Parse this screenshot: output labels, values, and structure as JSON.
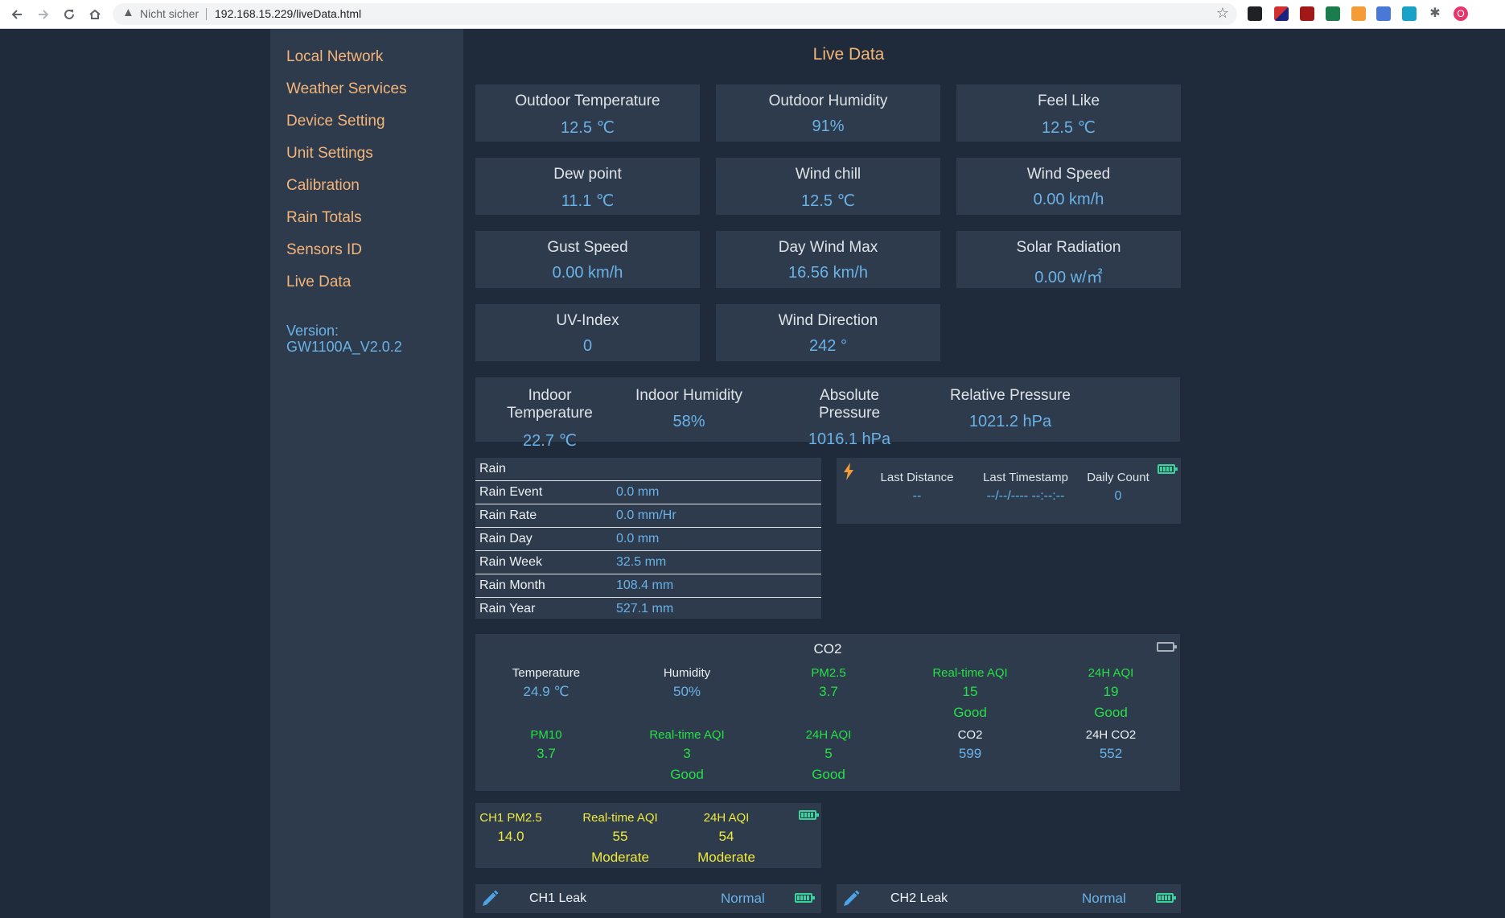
{
  "browser": {
    "security_label": "Nicht sicher",
    "url": "192.168.15.229/liveData.html",
    "profile_initial": "O"
  },
  "sidebar": {
    "items": [
      {
        "label": "Local Network"
      },
      {
        "label": "Weather Services"
      },
      {
        "label": "Device Setting"
      },
      {
        "label": "Unit Settings"
      },
      {
        "label": "Calibration"
      },
      {
        "label": "Rain Totals"
      },
      {
        "label": "Sensors ID"
      },
      {
        "label": "Live Data"
      }
    ],
    "version_label": "Version:",
    "version_value": "GW1100A_V2.0.2"
  },
  "page": {
    "title": "Live Data"
  },
  "outdoor_cards": [
    {
      "label": "Outdoor Temperature",
      "value": "12.5 ℃"
    },
    {
      "label": "Outdoor Humidity",
      "value": "91%"
    },
    {
      "label": "Feel Like",
      "value": "12.5 ℃"
    },
    {
      "label": "Dew point",
      "value": "11.1 ℃"
    },
    {
      "label": "Wind chill",
      "value": "12.5 ℃"
    },
    {
      "label": "Wind Speed",
      "value": "0.00 km/h"
    },
    {
      "label": "Gust Speed",
      "value": "0.00 km/h"
    },
    {
      "label": "Day Wind Max",
      "value": "16.56 km/h"
    },
    {
      "label": "Solar Radiation",
      "value": "0.00 w/㎡"
    },
    {
      "label": "UV-Index",
      "value": "0"
    },
    {
      "label": "Wind Direction",
      "value": "242 °"
    }
  ],
  "indoor": [
    {
      "label": "Indoor Temperature",
      "value": "22.7 ℃"
    },
    {
      "label": "Indoor Humidity",
      "value": "58%"
    },
    {
      "label": "Absolute Pressure",
      "value": "1016.1 hPa"
    },
    {
      "label": "Relative Pressure",
      "value": "1021.2 hPa"
    }
  ],
  "rain": {
    "header": "Rain",
    "rows": [
      {
        "label": "Rain Event",
        "value": "0.0 mm"
      },
      {
        "label": "Rain Rate",
        "value": "0.0 mm/Hr"
      },
      {
        "label": "Rain Day",
        "value": "0.0 mm"
      },
      {
        "label": "Rain Week",
        "value": "32.5 mm"
      },
      {
        "label": "Rain Month",
        "value": "108.4 mm"
      },
      {
        "label": "Rain Year",
        "value": "527.1 mm"
      }
    ]
  },
  "lightning": {
    "cells": [
      {
        "label": "Last Distance",
        "value": "--"
      },
      {
        "label": "Last Timestamp",
        "value": "--/--/---- --:--:--"
      },
      {
        "label": "Daily Count",
        "value": "0"
      }
    ]
  },
  "co2": {
    "title": "CO2",
    "row1": [
      {
        "label": "Temperature",
        "value": "24.9 ℃",
        "quality": ""
      },
      {
        "label": "Humidity",
        "value": "50%",
        "quality": ""
      },
      {
        "label": "PM2.5",
        "value": "3.7",
        "quality": ""
      },
      {
        "label": "Real-time AQI",
        "value": "15",
        "quality": "Good"
      },
      {
        "label": "24H AQI",
        "value": "19",
        "quality": "Good"
      }
    ],
    "row2": [
      {
        "label": "PM10",
        "value": "3.7",
        "quality": ""
      },
      {
        "label": "Real-time AQI",
        "value": "3",
        "quality": "Good"
      },
      {
        "label": "24H AQI",
        "value": "5",
        "quality": "Good"
      },
      {
        "label": "CO2",
        "value": "599",
        "quality": ""
      },
      {
        "label": "24H CO2",
        "value": "552",
        "quality": ""
      }
    ]
  },
  "pm25": {
    "cells": [
      {
        "label": "CH1 PM2.5",
        "value": "14.0",
        "quality": ""
      },
      {
        "label": "Real-time AQI",
        "value": "55",
        "quality": "Moderate"
      },
      {
        "label": "24H AQI",
        "value": "54",
        "quality": "Moderate"
      }
    ]
  },
  "leaks": [
    {
      "name": "CH1 Leak",
      "state": "Normal"
    },
    {
      "name": "CH2 Leak",
      "state": "Normal"
    }
  ]
}
